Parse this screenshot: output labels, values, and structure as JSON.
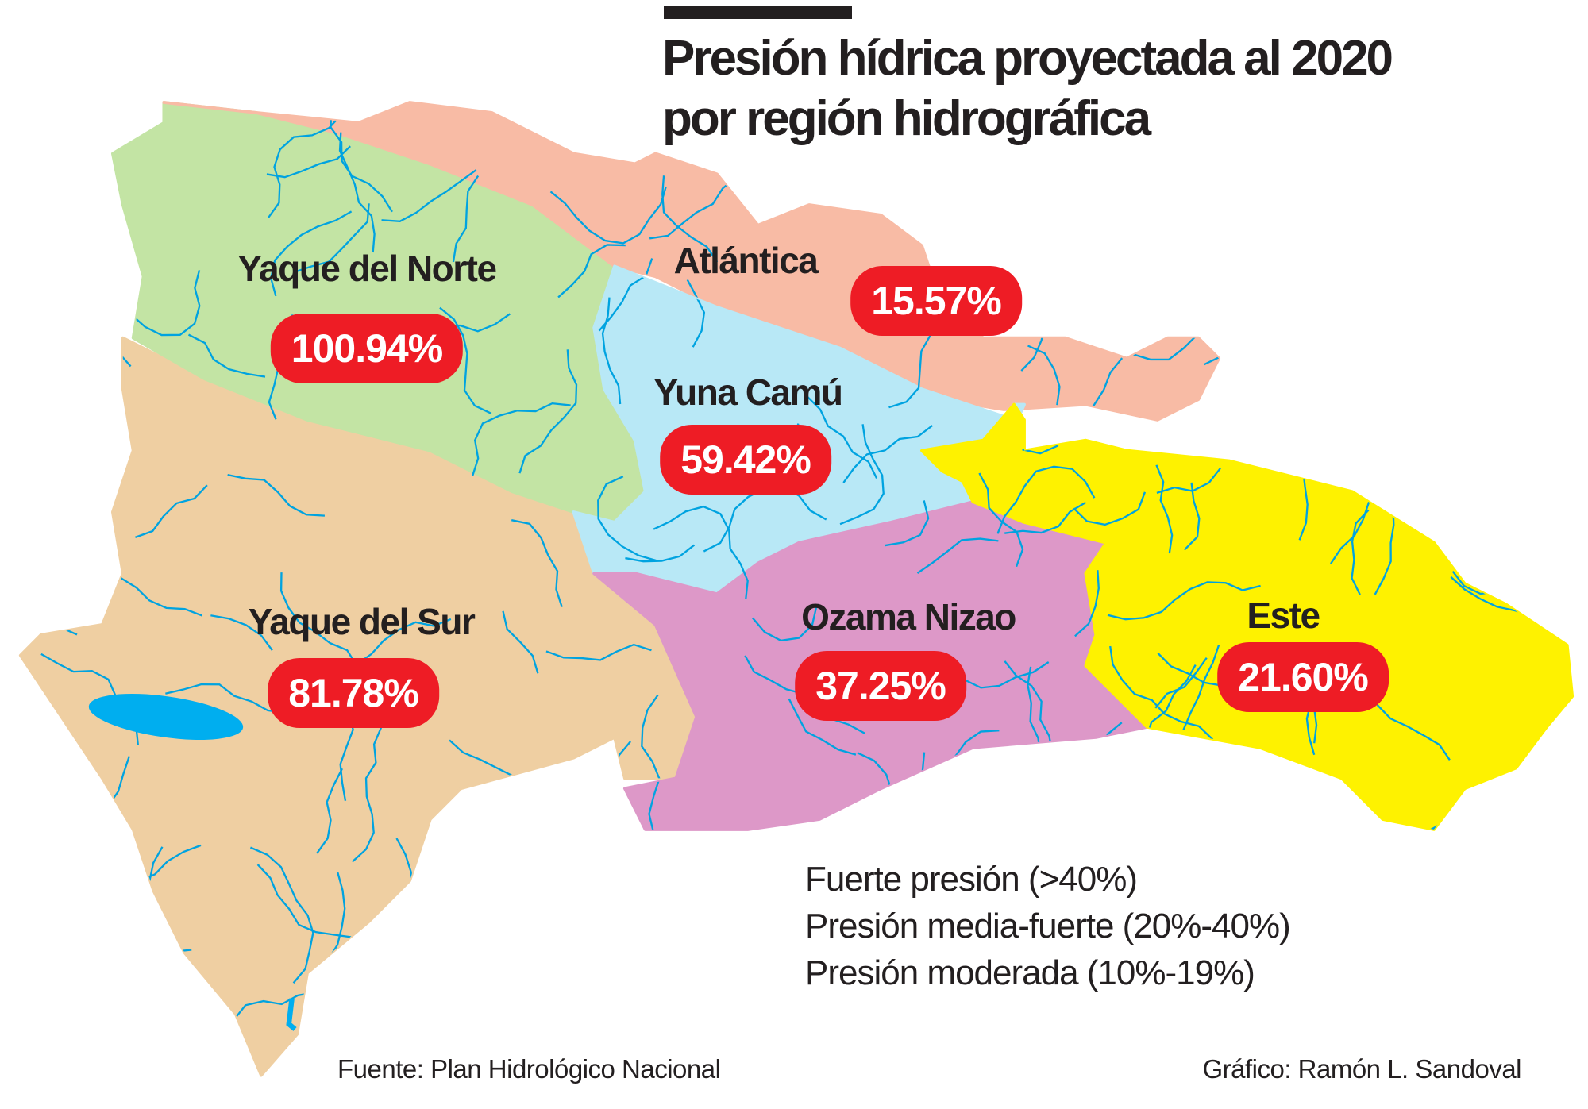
{
  "title": {
    "line1": "Presión hídrica proyectada al 2020",
    "line2": "por región hidrográfica"
  },
  "regions": [
    {
      "name": "Yaque del Norte",
      "value": "100.94%",
      "color": "#c3e4a4"
    },
    {
      "name": "Atlántica",
      "value": "15.57%",
      "color": "#f8bba5"
    },
    {
      "name": "Yuna Camú",
      "value": "59.42%",
      "color": "#b8e8f6"
    },
    {
      "name": "Yaque del Sur",
      "value": "81.78%",
      "color": "#efcfa2"
    },
    {
      "name": "Ozama Nizao",
      "value": "37.25%",
      "color": "#dd98c8"
    },
    {
      "name": "Este",
      "value": "21.60%",
      "color": "#fef200"
    }
  ],
  "legend": [
    "Fuerte presión (>40%)",
    "Presión media-fuerte (20%-40%)",
    "Presión moderada (10%-19%)"
  ],
  "source": "Fuente: Plan Hidrológico Nacional",
  "credit": "Gráfico: Ramón L. Sandoval",
  "colors": {
    "badge": "#ee1c25",
    "river": "#00a3e0",
    "lake": "#00aeef",
    "text": "#231f20"
  }
}
